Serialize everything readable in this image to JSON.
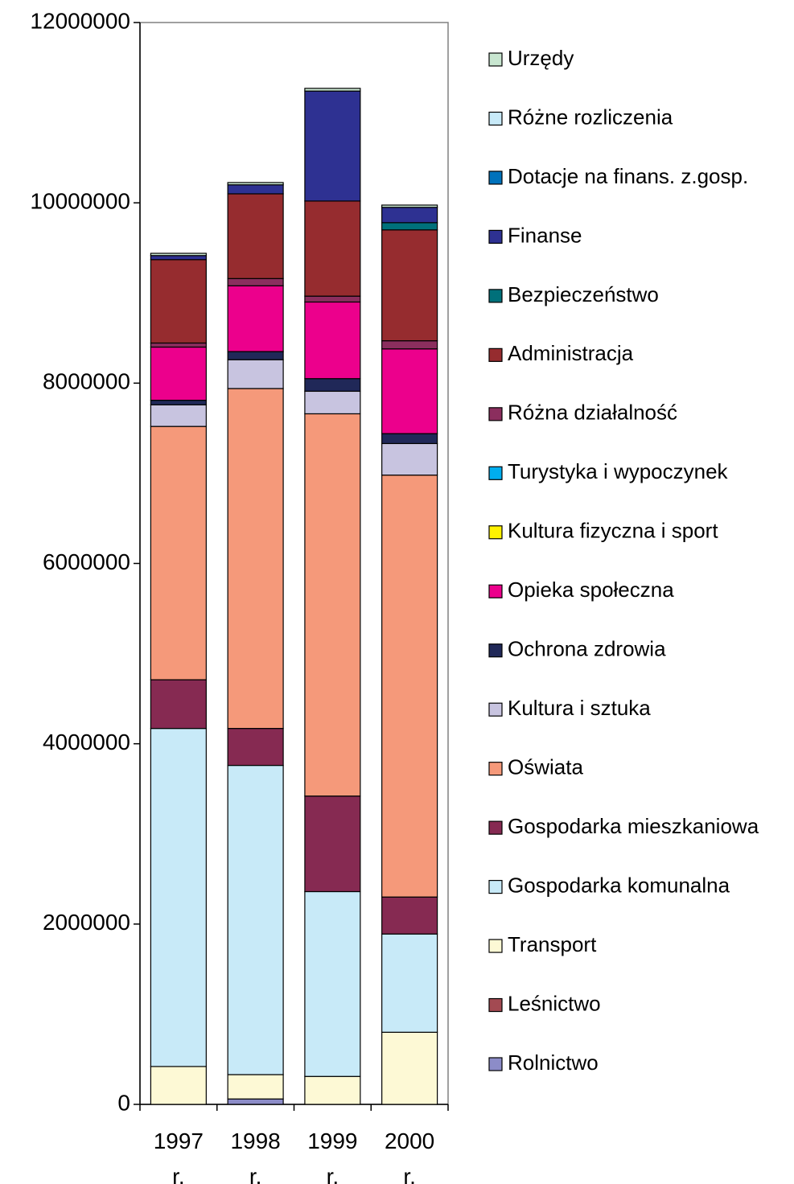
{
  "chart_data": {
    "type": "stacked_bar",
    "categories": [
      "1997 r.",
      "1998 r.",
      "1999 r.",
      "2000 r."
    ],
    "ylim": [
      0,
      12000000
    ],
    "yticks": [
      0,
      2000000,
      4000000,
      6000000,
      8000000,
      10000000,
      12000000
    ],
    "series": [
      {
        "name": "Rolnictwo",
        "color": "#8c8cc8",
        "values": [
          0,
          60000,
          0,
          0
        ]
      },
      {
        "name": "Leśnictwo",
        "color": "#a34a52",
        "values": [
          0,
          0,
          0,
          0
        ]
      },
      {
        "name": "Transport",
        "color": "#fdf9d5",
        "values": [
          420000,
          270000,
          310000,
          800000
        ]
      },
      {
        "name": "Gospodarka komunalna",
        "color": "#c8eaf8",
        "values": [
          3750000,
          3430000,
          2050000,
          1090000
        ]
      },
      {
        "name": "Gospodarka mieszkaniowa",
        "color": "#862a52",
        "values": [
          540000,
          410000,
          1060000,
          410000
        ]
      },
      {
        "name": "Oświata",
        "color": "#f5997a",
        "values": [
          2810000,
          3770000,
          4240000,
          4680000
        ]
      },
      {
        "name": "Kultura i sztuka",
        "color": "#c8c4e0",
        "values": [
          240000,
          320000,
          250000,
          350000
        ]
      },
      {
        "name": "Ochrona  zdrowia",
        "color": "#202858",
        "values": [
          50000,
          90000,
          140000,
          110000
        ]
      },
      {
        "name": "Opieka społeczna",
        "color": "#ec008c",
        "values": [
          590000,
          730000,
          850000,
          940000
        ]
      },
      {
        "name": "Kultura fizyczna  i sport",
        "color": "#fff200",
        "values": [
          0,
          0,
          0,
          0
        ]
      },
      {
        "name": "Turystyka i wypoczynek",
        "color": "#00aeef",
        "values": [
          0,
          0,
          0,
          0
        ]
      },
      {
        "name": "Różna działalność",
        "color": "#8b2e5e",
        "values": [
          45000,
          80000,
          65000,
          90000
        ]
      },
      {
        "name": "Administracja",
        "color": "#962c2f",
        "values": [
          925000,
          940000,
          1055000,
          1230000
        ]
      },
      {
        "name": "Bezpieczeństwo",
        "color": "#00707a",
        "values": [
          0,
          0,
          0,
          80000
        ]
      },
      {
        "name": "Finanse",
        "color": "#2e3192",
        "values": [
          45000,
          100000,
          1220000,
          170000
        ]
      },
      {
        "name": "Dotacje na finans. z.gosp.",
        "color": "#0072bc",
        "values": [
          0,
          0,
          0,
          0
        ]
      },
      {
        "name": "Różne rozliczenia",
        "color": "#c8eaf8",
        "values": [
          0,
          0,
          0,
          0
        ]
      },
      {
        "name": "Urzędy",
        "color": "#c8e6d0",
        "values": [
          25000,
          25000,
          30000,
          25000
        ]
      }
    ]
  }
}
